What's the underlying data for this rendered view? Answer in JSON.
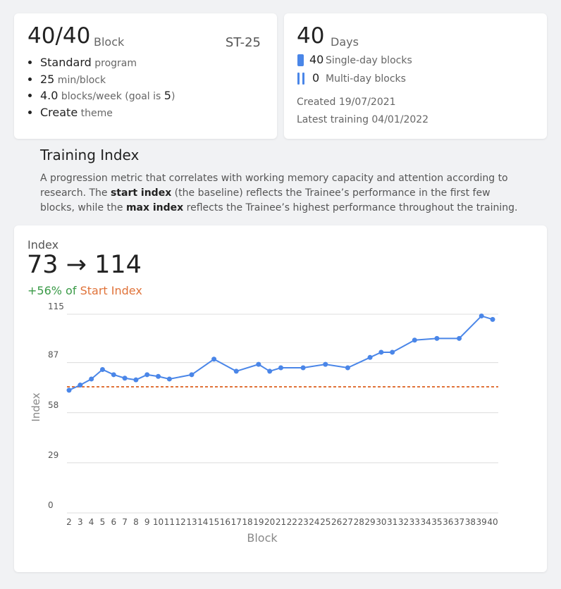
{
  "summary": {
    "count": "40/40",
    "count_unit": "Block",
    "code": "ST-25",
    "items": [
      [
        "Standard",
        " program"
      ],
      [
        "25",
        " min/block"
      ],
      [
        "4.0",
        " blocks/week (goal is ",
        "5",
        ")"
      ],
      [
        "Create",
        " theme"
      ]
    ]
  },
  "days": {
    "count": 40,
    "unit": "Days",
    "single": {
      "count": 40,
      "label": "Single-day blocks"
    },
    "multi": {
      "count": 0,
      "label": "Multi-day blocks"
    },
    "created": "Created 19/07/2021",
    "latest": "Latest training 04/01/2022"
  },
  "section": {
    "title": "Training Index",
    "description": [
      "A progression metric that correlates with working memory capacity and attention according to research. The ",
      "start index",
      " (the baseline) reflects the Trainee’s performance in the first few blocks, while the ",
      "max index",
      " reflects the Trainee’s highest performance throughout the training."
    ]
  },
  "chart_card": {
    "label": "Index",
    "value": "73 → 114",
    "change": "+56% of",
    "change_ref": "Start Index"
  },
  "chart_data": {
    "type": "line",
    "x_label": "Block",
    "y_label": "Index",
    "x": [
      2,
      3,
      4,
      5,
      6,
      7,
      8,
      9,
      10,
      11,
      13,
      15,
      17,
      19,
      20,
      21,
      23,
      25,
      27,
      29,
      30,
      31,
      33,
      35,
      37,
      39,
      40
    ],
    "values": [
      71,
      74,
      77.5,
      83,
      80,
      78,
      77,
      80,
      79,
      77.5,
      80,
      89,
      82,
      86,
      82,
      84,
      84,
      86,
      84,
      90,
      93,
      93,
      100,
      101,
      101,
      114,
      112
    ],
    "color": "#4a86e8",
    "xlim": [
      2,
      40
    ],
    "xticks": [
      2,
      3,
      4,
      5,
      6,
      7,
      8,
      9,
      10,
      11,
      12,
      13,
      14,
      15,
      16,
      17,
      18,
      19,
      20,
      21,
      22,
      23,
      24,
      25,
      26,
      27,
      28,
      29,
      30,
      31,
      32,
      33,
      34,
      35,
      36,
      37,
      38,
      39,
      40
    ],
    "ylim": [
      0,
      115
    ],
    "yticks": [
      0,
      29,
      58,
      87,
      115
    ],
    "grid": true,
    "reference_line": {
      "value": 73,
      "color": "#e0733a"
    }
  }
}
